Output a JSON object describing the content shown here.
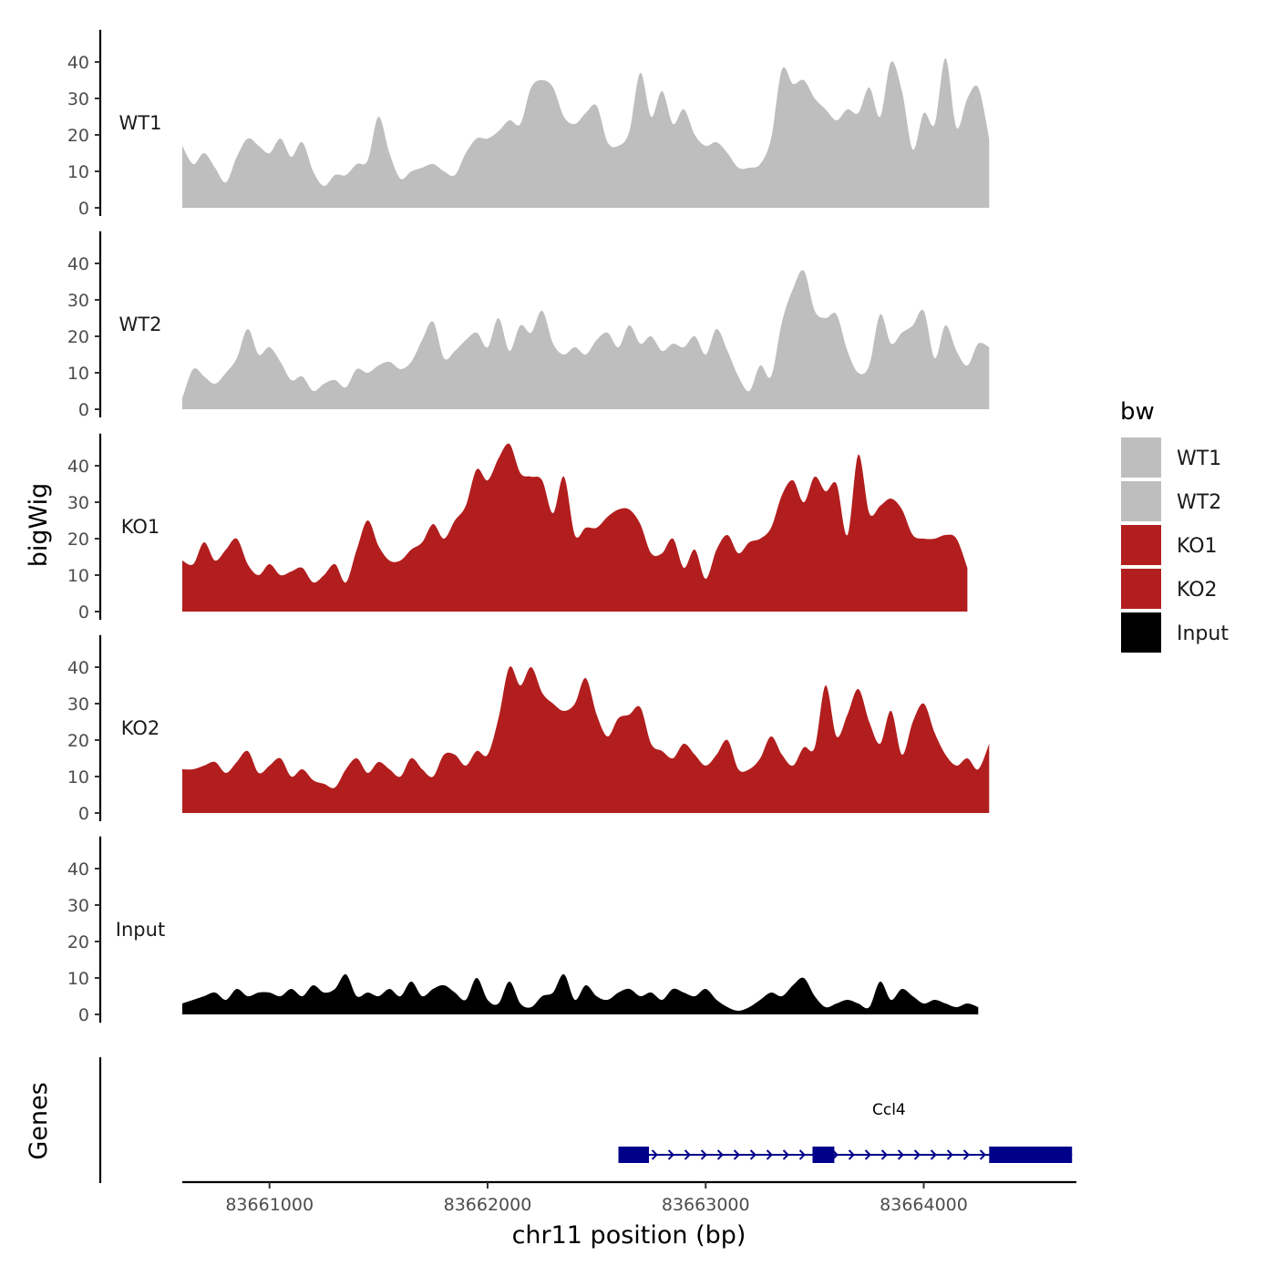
{
  "chart_data": {
    "type": "area",
    "ylabel": "bigWig",
    "xlabel": "chr11 position (bp)",
    "xlim": [
      83660600,
      83664700
    ],
    "ylim": [
      0,
      48
    ],
    "yticks": [
      0,
      10,
      20,
      30,
      40
    ],
    "xticks": [
      {
        "value": 83661000,
        "label": "83661000"
      },
      {
        "value": 83662000,
        "label": "83662000"
      },
      {
        "value": 83663000,
        "label": "83663000"
      },
      {
        "value": 83664000,
        "label": "83664000"
      }
    ],
    "series": [
      {
        "name": "WT1",
        "color": "#bebebe",
        "start": 83660600,
        "step": 50,
        "values": [
          17,
          12,
          15,
          11,
          7,
          14,
          19,
          17,
          15,
          19,
          14,
          18,
          10,
          6,
          9,
          9,
          12,
          13,
          25,
          15,
          8,
          10,
          11,
          12,
          10,
          9,
          15,
          19,
          19,
          21,
          24,
          23,
          33,
          35,
          33,
          25,
          23,
          26,
          28,
          18,
          17,
          21,
          37,
          25,
          32,
          23,
          27,
          20,
          17,
          18,
          15,
          11,
          11,
          12,
          19,
          38,
          34,
          35,
          30,
          27,
          24,
          27,
          26,
          33,
          25,
          40,
          32,
          16,
          26,
          23,
          41,
          22,
          30,
          33,
          19
        ]
      },
      {
        "name": "WT2",
        "color": "#bebebe",
        "start": 83660600,
        "step": 50,
        "values": [
          3,
          11,
          9,
          7,
          10,
          14,
          22,
          15,
          17,
          13,
          8,
          9,
          5,
          7,
          8,
          6,
          11,
          10,
          12,
          13,
          11,
          13,
          19,
          24,
          14,
          16,
          19,
          21,
          17,
          25,
          16,
          23,
          21,
          27,
          18,
          15,
          17,
          15,
          19,
          21,
          17,
          23,
          18,
          20,
          16,
          18,
          17,
          20,
          15,
          22,
          16,
          9,
          5,
          12,
          9,
          24,
          33,
          38,
          27,
          25,
          26,
          16,
          10,
          12,
          26,
          18,
          21,
          23,
          27,
          14,
          23,
          16,
          12,
          18,
          17
        ]
      },
      {
        "name": "KO1",
        "color": "#b21e1e",
        "start": 83660600,
        "step": 50,
        "values": [
          14,
          13,
          19,
          14,
          17,
          20,
          13,
          10,
          13,
          10,
          11,
          12,
          8,
          10,
          13,
          8,
          17,
          25,
          18,
          14,
          14,
          17,
          19,
          24,
          20,
          25,
          29,
          39,
          36,
          42,
          46,
          38,
          37,
          36,
          27,
          37,
          21,
          23,
          23,
          26,
          28,
          28,
          24,
          16,
          16,
          20,
          12,
          17,
          9,
          17,
          21,
          16,
          19,
          20,
          23,
          32,
          36,
          30,
          37,
          33,
          35,
          21,
          43,
          27,
          29,
          31,
          28,
          21,
          20,
          20,
          21,
          20,
          12
        ]
      },
      {
        "name": "KO2",
        "color": "#b21e1e",
        "start": 83660600,
        "step": 50,
        "values": [
          12,
          12,
          13,
          14,
          11,
          14,
          17,
          11,
          13,
          15,
          10,
          12,
          9,
          8,
          7,
          12,
          15,
          11,
          14,
          12,
          10,
          15,
          12,
          10,
          16,
          16,
          13,
          17,
          16,
          26,
          40,
          35,
          40,
          33,
          30,
          28,
          30,
          37,
          27,
          21,
          26,
          27,
          29,
          19,
          17,
          15,
          19,
          16,
          13,
          16,
          20,
          12,
          12,
          15,
          21,
          16,
          13,
          18,
          18,
          35,
          21,
          27,
          34,
          25,
          19,
          28,
          16,
          25,
          30,
          22,
          16,
          13,
          15,
          12,
          19
        ]
      },
      {
        "name": "Input",
        "color": "#000000",
        "start": 83660600,
        "step": 50,
        "values": [
          3,
          4,
          5,
          6,
          4,
          7,
          5,
          6,
          6,
          5,
          7,
          5,
          8,
          6,
          7,
          11,
          5,
          6,
          5,
          7,
          5,
          9,
          5,
          7,
          8,
          6,
          4,
          10,
          4,
          3,
          9,
          3,
          2,
          5,
          6,
          11,
          4,
          8,
          5,
          4,
          6,
          7,
          5,
          6,
          4,
          7,
          6,
          5,
          7,
          4,
          2,
          1,
          2,
          4,
          6,
          5,
          8,
          10,
          5,
          2,
          3,
          4,
          3,
          2,
          9,
          4,
          7,
          5,
          3,
          4,
          3,
          2,
          3,
          2
        ]
      }
    ],
    "genes": [
      {
        "name": "Ccl4",
        "start": 83662600,
        "end": 83664680,
        "strand": "+",
        "exons": [
          [
            83662600,
            83662740
          ],
          [
            83663490,
            83663590
          ],
          [
            83664300,
            83664680
          ]
        ]
      }
    ],
    "gene_track_label": "Genes",
    "legend": {
      "title": "bw",
      "placement": "right"
    }
  }
}
